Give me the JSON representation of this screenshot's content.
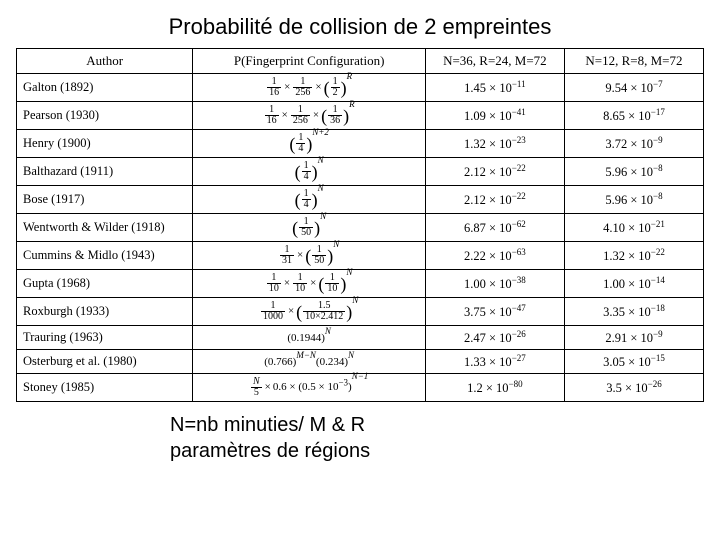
{
  "title": "Probabilité de collision de 2 empreintes",
  "footer_line1": "N=nb minuties/ M & R",
  "footer_line2": "paramètres de régions",
  "columns": {
    "author": "Author",
    "formula": "P(Fingerprint Configuration)",
    "col1": "N=36, R=24, M=72",
    "col2": "N=12, R=8, M=72"
  },
  "rows": [
    {
      "author": "Galton (1892)",
      "v1": "1.45 × 10",
      "e1": "−11",
      "v2": "9.54 × 10",
      "e2": "−7"
    },
    {
      "author": "Pearson (1930)",
      "v1": "1.09 × 10",
      "e1": "−41",
      "v2": "8.65 × 10",
      "e2": "−17"
    },
    {
      "author": "Henry (1900)",
      "v1": "1.32 × 10",
      "e1": "−23",
      "v2": "3.72 × 10",
      "e2": "−9"
    },
    {
      "author": "Balthazard (1911)",
      "v1": "2.12 × 10",
      "e1": "−22",
      "v2": "5.96 × 10",
      "e2": "−8"
    },
    {
      "author": "Bose (1917)",
      "v1": "2.12 × 10",
      "e1": "−22",
      "v2": "5.96 × 10",
      "e2": "−8"
    },
    {
      "author": "Wentworth & Wilder (1918)",
      "v1": "6.87 × 10",
      "e1": "−62",
      "v2": "4.10 × 10",
      "e2": "−21"
    },
    {
      "author": "Cummins & Midlo (1943)",
      "v1": "2.22 × 10",
      "e1": "−63",
      "v2": "1.32 × 10",
      "e2": "−22"
    },
    {
      "author": "Gupta (1968)",
      "v1": "1.00 × 10",
      "e1": "−38",
      "v2": "1.00 × 10",
      "e2": "−14"
    },
    {
      "author": "Roxburgh (1933)",
      "v1": "3.75 × 10",
      "e1": "−47",
      "v2": "3.35 × 10",
      "e2": "−18"
    },
    {
      "author": "Trauring (1963)",
      "v1": "2.47 × 10",
      "e1": "−26",
      "v2": "2.91 × 10",
      "e2": "−9"
    },
    {
      "author": "Osterburg et al. (1980)",
      "v1": "1.33 × 10",
      "e1": "−27",
      "v2": "3.05 × 10",
      "e2": "−15"
    },
    {
      "author": "Stoney (1985)",
      "v1": "1.2 × 10",
      "e1": "−80",
      "v2": "3.5 × 10",
      "e2": "−26"
    }
  ]
}
